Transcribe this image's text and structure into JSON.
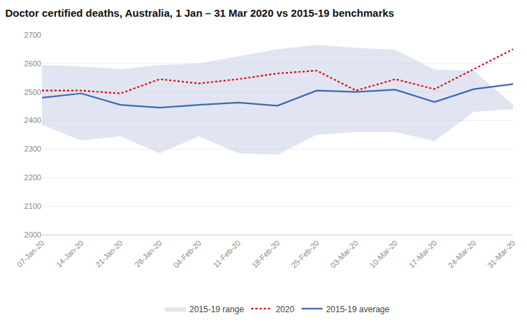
{
  "chart_data": {
    "type": "line",
    "title": "Doctor certified deaths, Australia, 1 Jan – 31 Mar 2020 vs 2015-19 benchmarks",
    "categories": [
      "07-Jan-20",
      "14-Jan-20",
      "21-Jan-20",
      "28-Jan-20",
      "04-Feb-20",
      "11-Feb-20",
      "18-Feb-20",
      "25-Feb-20",
      "03-Mar-20",
      "10-Mar-20",
      "17-Mar-20",
      "24-Mar-20",
      "31-Mar-20"
    ],
    "series": [
      {
        "name": "2015-19 range",
        "type": "area",
        "color": "#c8d0e8",
        "low": [
          2385,
          2330,
          2345,
          2285,
          2345,
          2285,
          2280,
          2350,
          2360,
          2360,
          2328,
          2430,
          2440
        ],
        "high": [
          2595,
          2590,
          2580,
          2595,
          2600,
          2625,
          2650,
          2665,
          2655,
          2648,
          2578,
          2575,
          2455
        ]
      },
      {
        "name": "2020",
        "type": "line",
        "color": "#e8000d",
        "line_style": "dotted",
        "values": [
          2505,
          2505,
          2495,
          2545,
          2530,
          2545,
          2565,
          2575,
          2505,
          2545,
          2510,
          2580,
          2650
        ]
      },
      {
        "name": "2015-19 average",
        "type": "line",
        "color": "#3c6ab0",
        "line_style": "solid",
        "values": [
          2480,
          2495,
          2455,
          2445,
          2455,
          2463,
          2452,
          2505,
          2500,
          2508,
          2465,
          2510,
          2528
        ]
      }
    ],
    "ylim": [
      2000,
      2700
    ],
    "yticks": [
      2000,
      2100,
      2200,
      2300,
      2400,
      2500,
      2600,
      2700
    ],
    "grid": "y",
    "legend": "bottom"
  }
}
